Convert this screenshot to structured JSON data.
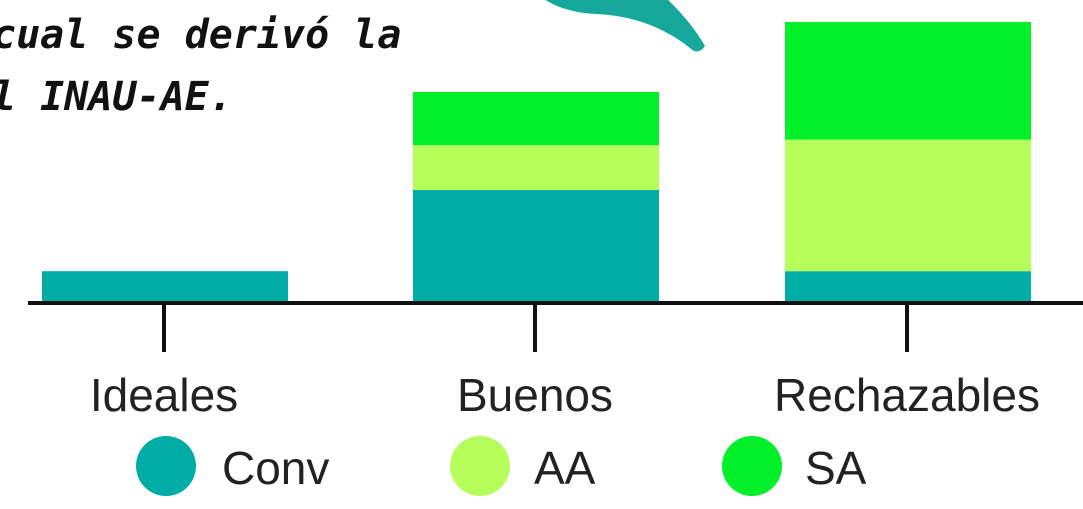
{
  "caption": {
    "line1": "cual se derivó la",
    "line2": "l INAU-AE."
  },
  "decoration": {
    "arrow_color": "#16A89A"
  },
  "chart_data": {
    "type": "bar",
    "stacked": true,
    "categories": [
      "Ideales",
      "Buenos",
      "Rechazables"
    ],
    "series": [
      {
        "name": "Conv",
        "color": "#00ADA5",
        "values": [
          11,
          40,
          11
        ]
      },
      {
        "name": "AA",
        "color": "#B6FF5A",
        "values": [
          0,
          16,
          47
        ]
      },
      {
        "name": "SA",
        "color": "#00F02A",
        "values": [
          0,
          19,
          42
        ]
      }
    ],
    "ylim": [
      0,
      100
    ],
    "grid": false,
    "legend": "bottom"
  }
}
